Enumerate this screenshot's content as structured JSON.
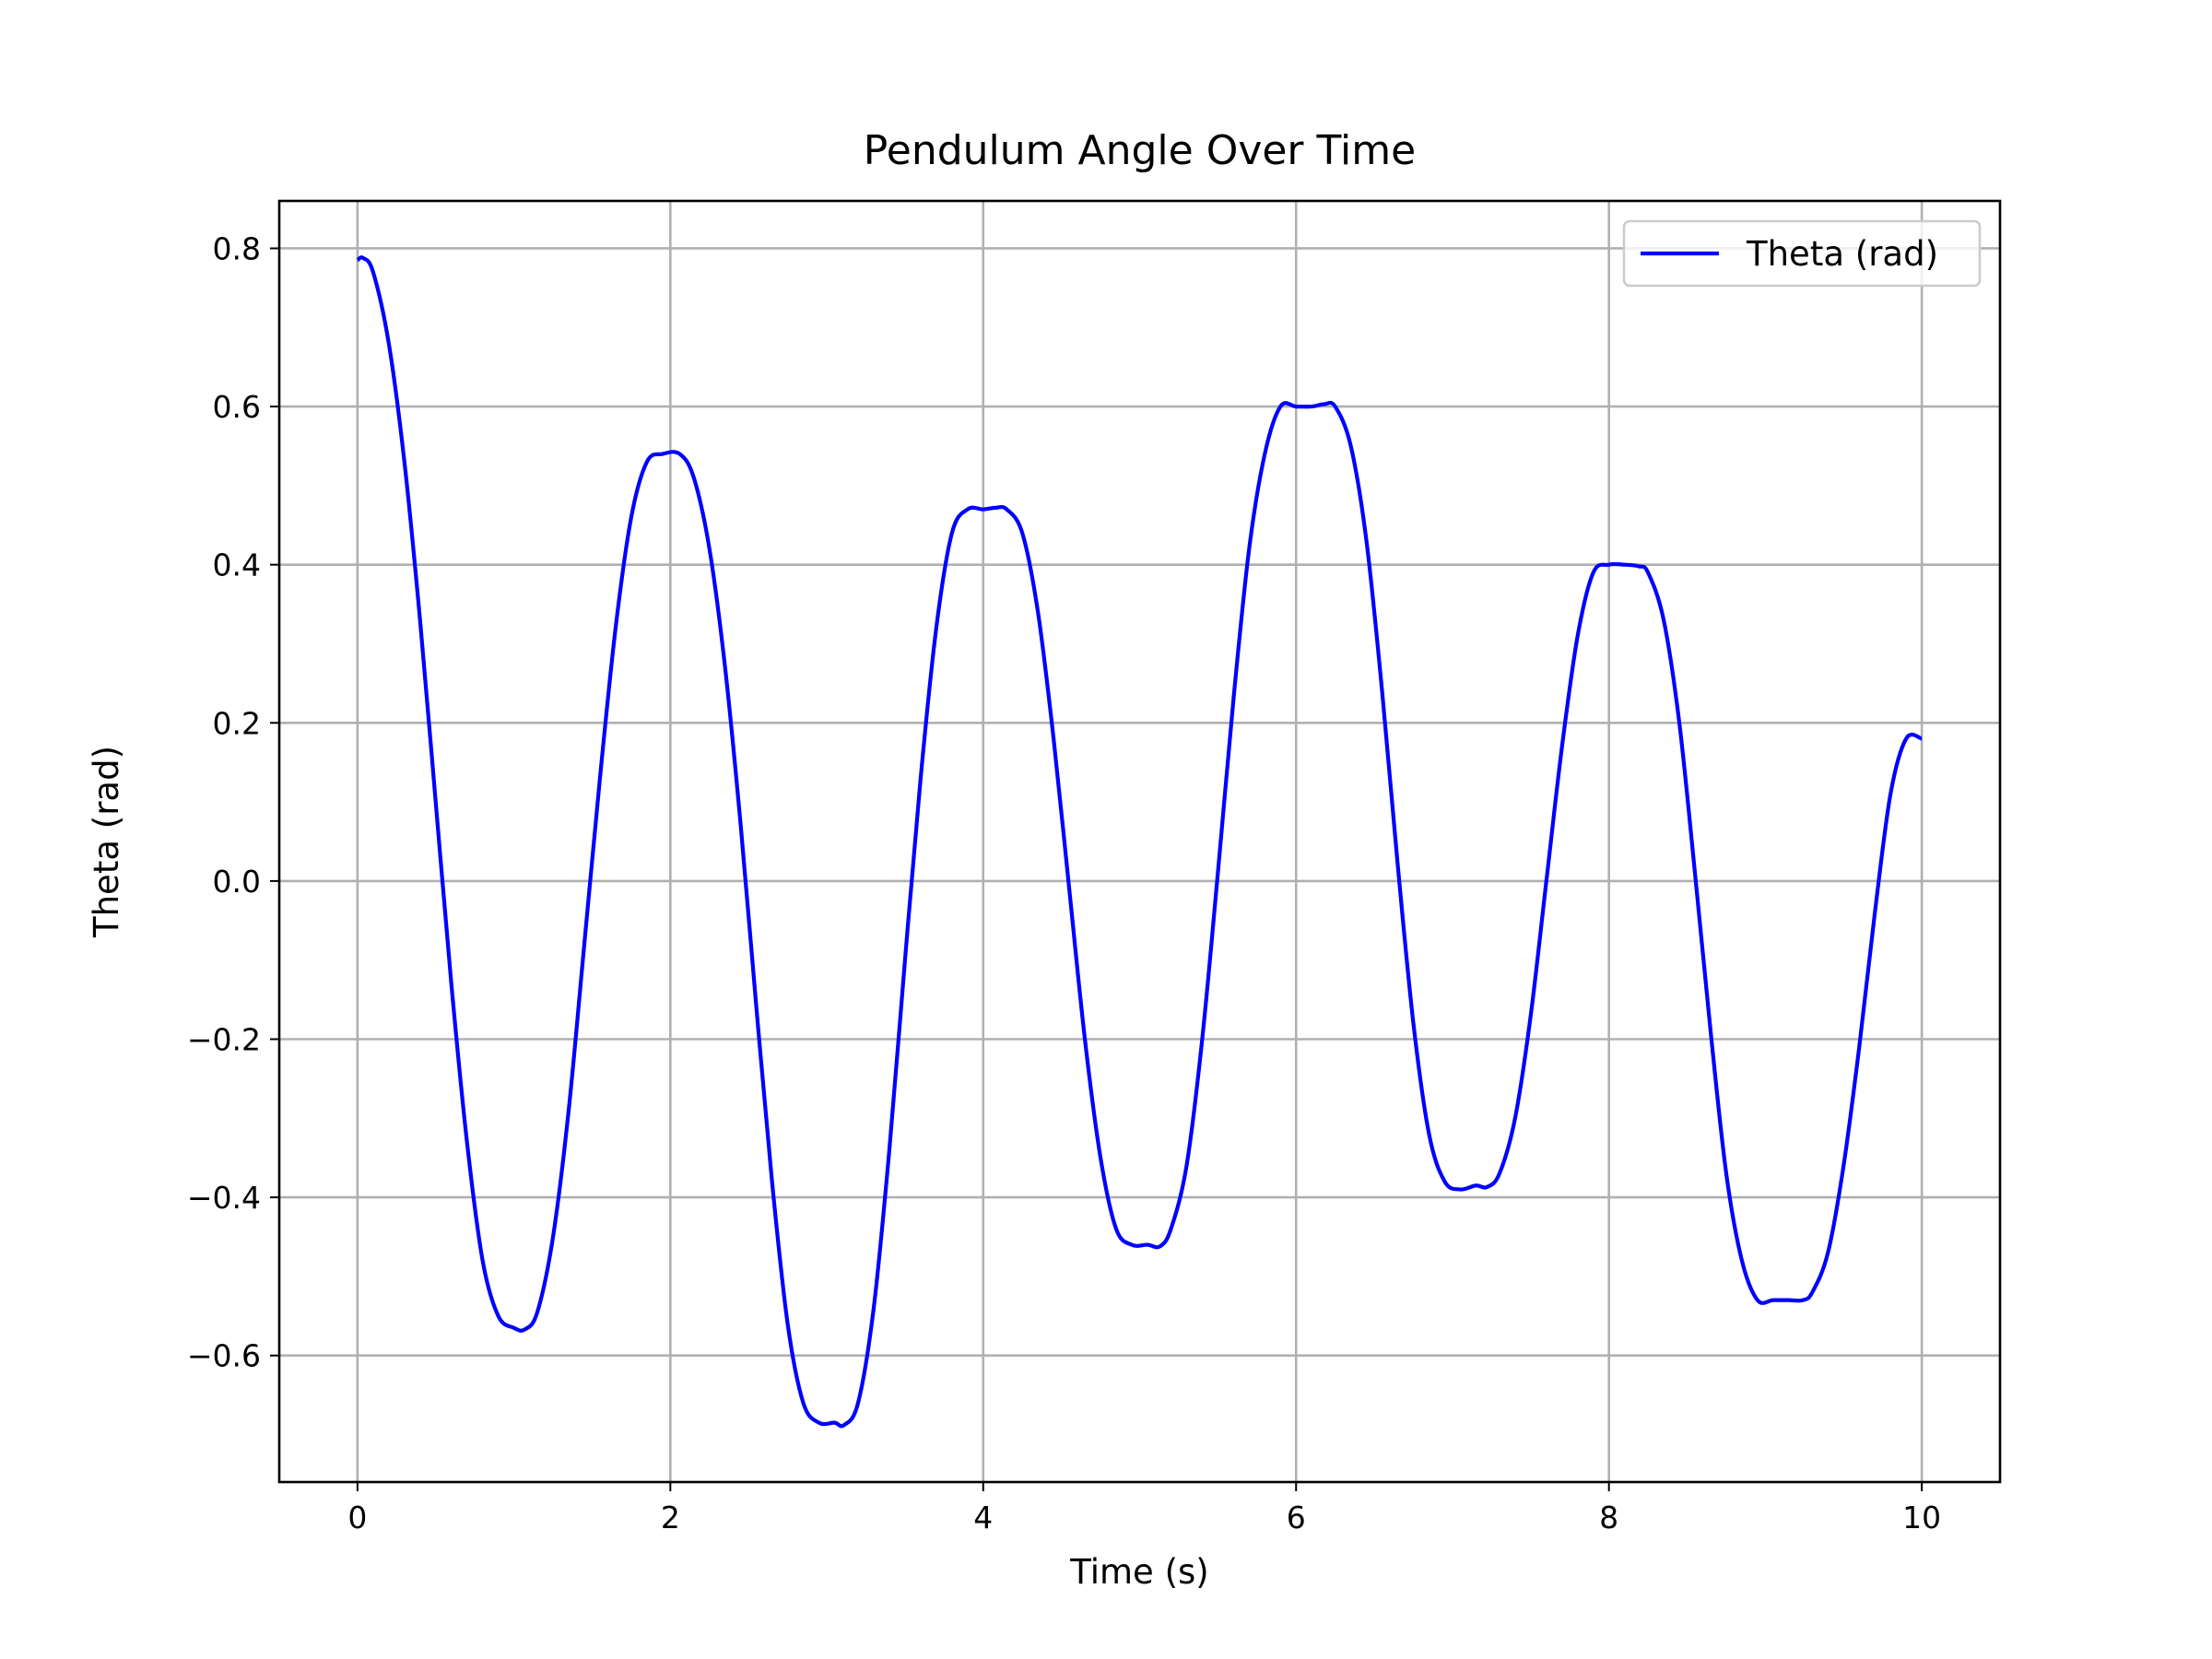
{
  "chart_data": {
    "type": "line",
    "title": "Pendulum Angle Over Time",
    "xlabel": "Time (s)",
    "ylabel": "Theta (rad)",
    "xlim": [
      -0.5,
      10.5
    ],
    "ylim": [
      -0.76,
      0.86
    ],
    "xticks": [
      0,
      2,
      4,
      6,
      8,
      10
    ],
    "xtick_labels": [
      "0",
      "2",
      "4",
      "6",
      "8",
      "10"
    ],
    "yticks": [
      -0.6,
      -0.4,
      -0.2,
      0.0,
      0.2,
      0.4,
      0.6,
      0.8
    ],
    "ytick_labels": [
      "−0.6",
      "−0.4",
      "−0.2",
      "0.0",
      "0.2",
      "0.4",
      "0.6",
      "0.8"
    ],
    "grid": true,
    "legend_position": "top-right",
    "series": [
      {
        "name": "Theta (rad)",
        "color": "#0000ff",
        "x": [
          0,
          0.035,
          0.1,
          0.2,
          0.3,
          0.4,
          0.5,
          0.6,
          0.7,
          0.8,
          0.9,
          1.0,
          1.07,
          1.15,
          1.25,
          1.35,
          1.45,
          1.55,
          1.65,
          1.75,
          1.85,
          1.95,
          2.06,
          2.15,
          2.25,
          2.35,
          2.45,
          2.55,
          2.65,
          2.75,
          2.85,
          2.95,
          3.05,
          3.11,
          3.2,
          3.3,
          3.4,
          3.5,
          3.6,
          3.7,
          3.8,
          3.9,
          4.0,
          4.08,
          4.15,
          4.25,
          4.35,
          4.45,
          4.55,
          4.65,
          4.75,
          4.85,
          4.95,
          5.05,
          5.13,
          5.2,
          5.3,
          5.4,
          5.5,
          5.6,
          5.7,
          5.8,
          5.9,
          6.0,
          6.1,
          6.18,
          6.25,
          6.35,
          6.45,
          6.55,
          6.65,
          6.75,
          6.85,
          6.95,
          7.05,
          7.15,
          7.22,
          7.3,
          7.4,
          7.5,
          7.6,
          7.7,
          7.8,
          7.9,
          8.0,
          8.1,
          8.19,
          8.25,
          8.35,
          8.45,
          8.55,
          8.65,
          8.75,
          8.85,
          8.95,
          9.05,
          9.15,
          9.24,
          9.3,
          9.4,
          9.5,
          9.6,
          9.7,
          9.8,
          9.9,
          10.0
        ],
        "y": [
          0.785,
          0.788,
          0.77,
          0.68,
          0.53,
          0.33,
          0.1,
          -0.13,
          -0.33,
          -0.48,
          -0.55,
          -0.565,
          -0.567,
          -0.545,
          -0.45,
          -0.29,
          -0.08,
          0.13,
          0.32,
          0.46,
          0.53,
          0.54,
          0.54,
          0.51,
          0.42,
          0.27,
          0.07,
          -0.16,
          -0.38,
          -0.56,
          -0.66,
          -0.685,
          -0.685,
          -0.688,
          -0.66,
          -0.54,
          -0.34,
          -0.1,
          0.13,
          0.32,
          0.44,
          0.47,
          0.47,
          0.472,
          0.47,
          0.44,
          0.34,
          0.18,
          -0.01,
          -0.2,
          -0.35,
          -0.44,
          -0.46,
          -0.46,
          -0.462,
          -0.44,
          -0.36,
          -0.2,
          0.01,
          0.23,
          0.42,
          0.54,
          0.6,
          0.6,
          0.6,
          0.603,
          0.6,
          0.55,
          0.43,
          0.24,
          0.02,
          -0.18,
          -0.32,
          -0.38,
          -0.39,
          -0.385,
          -0.387,
          -0.37,
          -0.3,
          -0.17,
          0.0,
          0.17,
          0.31,
          0.39,
          0.4,
          0.4,
          0.398,
          0.39,
          0.33,
          0.2,
          0.01,
          -0.19,
          -0.37,
          -0.48,
          -0.53,
          -0.53,
          -0.53,
          -0.53,
          -0.52,
          -0.47,
          -0.36,
          -0.21,
          -0.04,
          0.11,
          0.18,
          0.18
        ]
      }
    ]
  }
}
